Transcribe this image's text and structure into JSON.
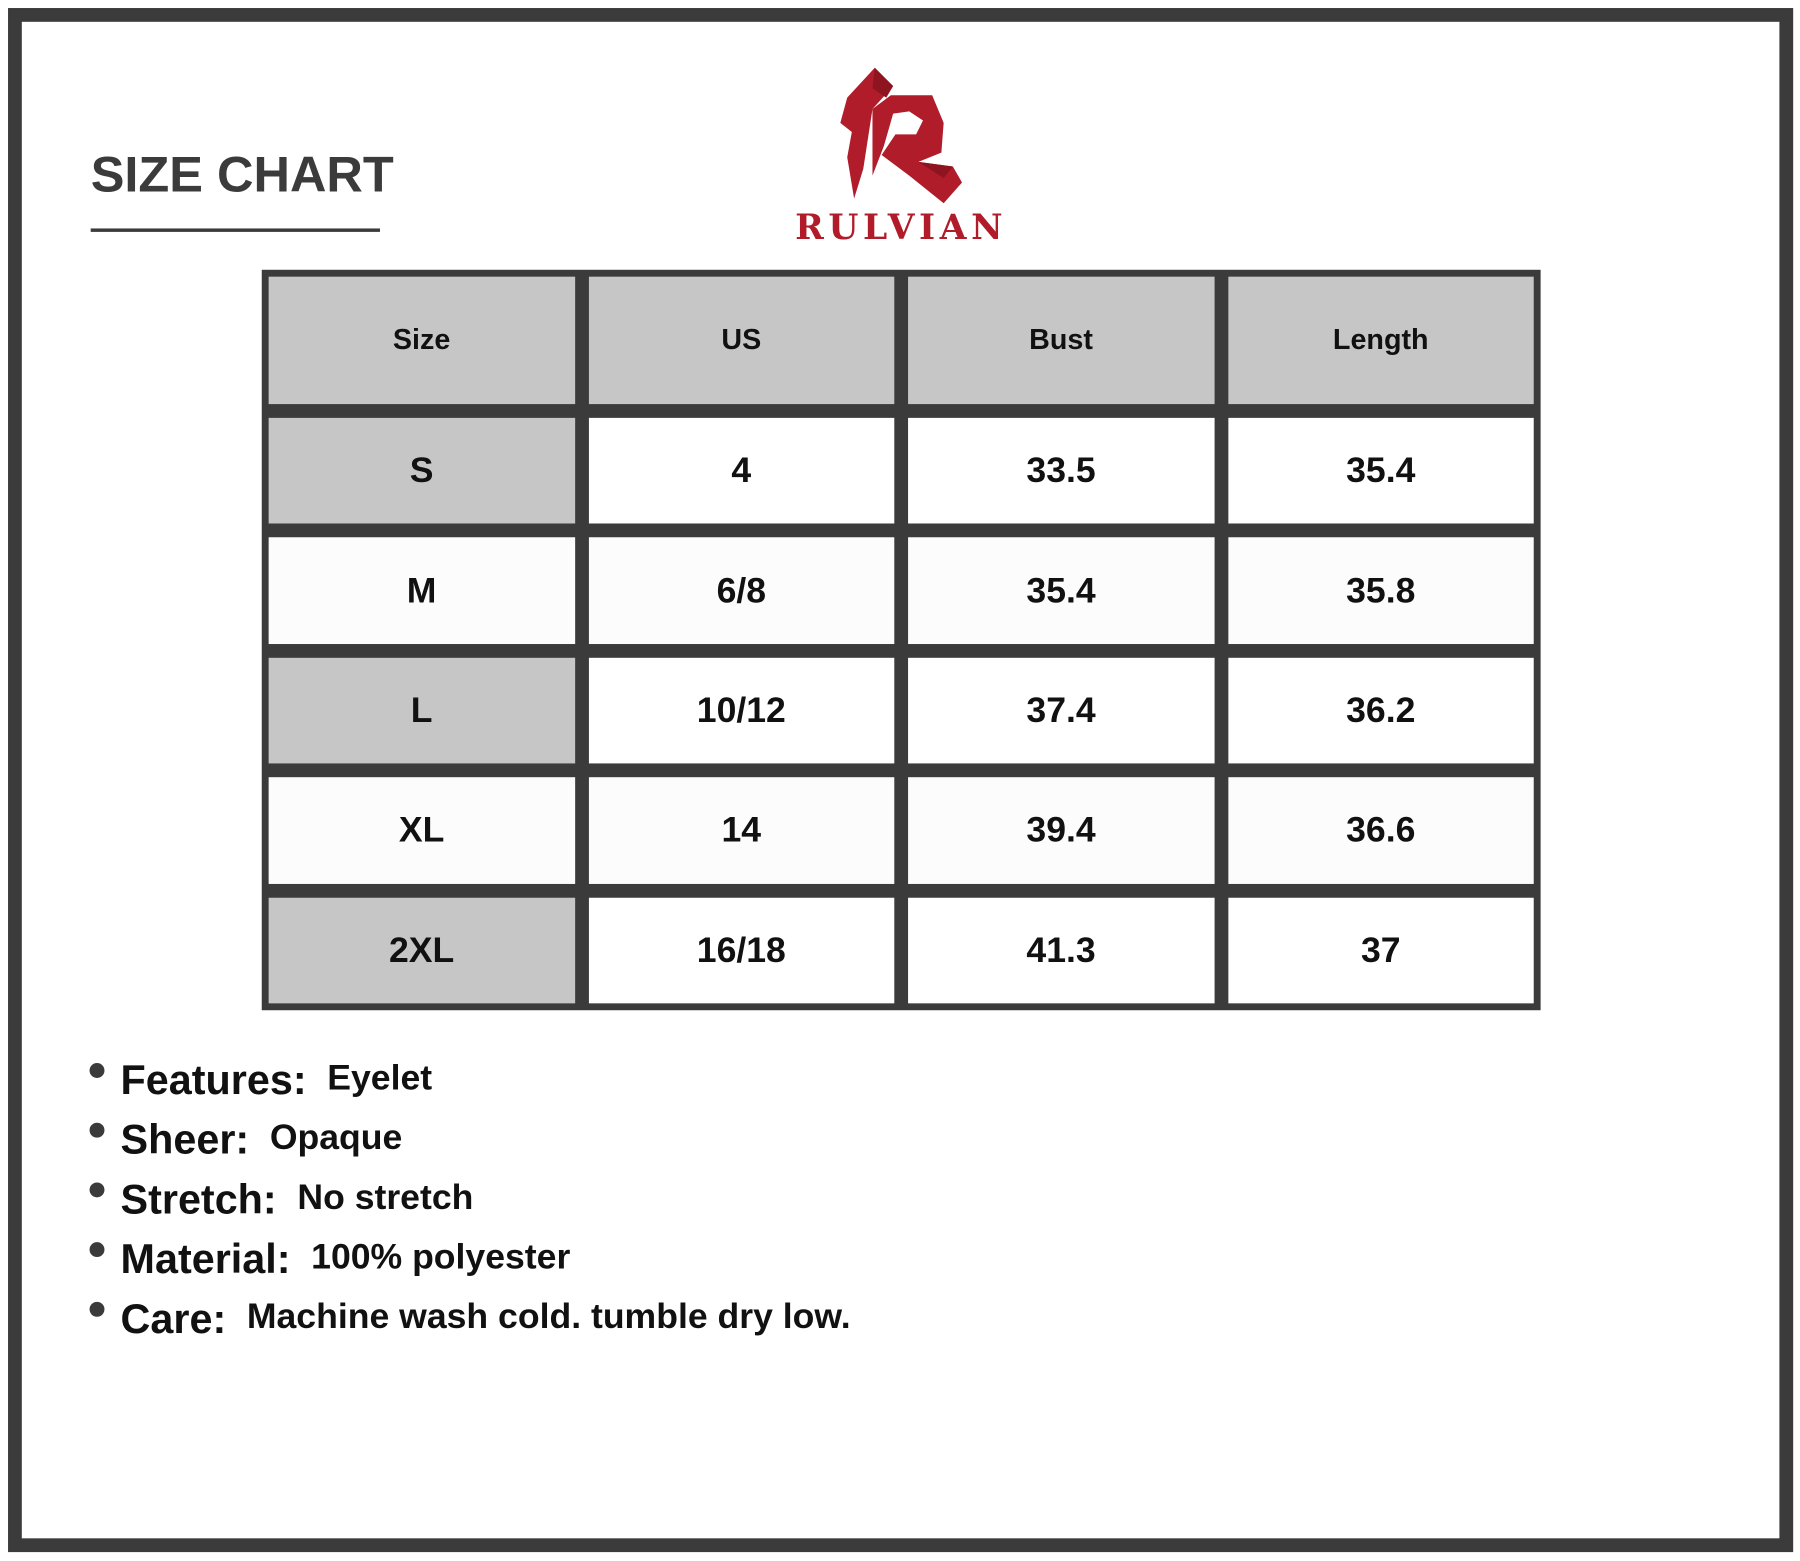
{
  "title": "SIZE CHART",
  "brand": {
    "name": "RULVIAN",
    "color": "#b01c2a"
  },
  "colors": {
    "border": "#3b3b3b",
    "header_fill": "#c6c6c6"
  },
  "table": {
    "headers": [
      "Size",
      "US",
      "Bust",
      "Length"
    ],
    "rows": [
      [
        "S",
        "4",
        "33.5",
        "35.4"
      ],
      [
        "M",
        "6/8",
        "35.4",
        "35.8"
      ],
      [
        "L",
        "10/12",
        "37.4",
        "36.2"
      ],
      [
        "XL",
        "14",
        "39.4",
        "36.6"
      ],
      [
        "2XL",
        "16/18",
        "41.3",
        "37"
      ]
    ]
  },
  "specs": [
    {
      "label": "Features:",
      "value": "Eyelet"
    },
    {
      "label": "Sheer:",
      "value": "Opaque"
    },
    {
      "label": "Stretch:",
      "value": "No stretch"
    },
    {
      "label": "Material:",
      "value": "100% polyester"
    },
    {
      "label": "Care:",
      "value": "Machine wash cold. tumble dry low."
    }
  ]
}
